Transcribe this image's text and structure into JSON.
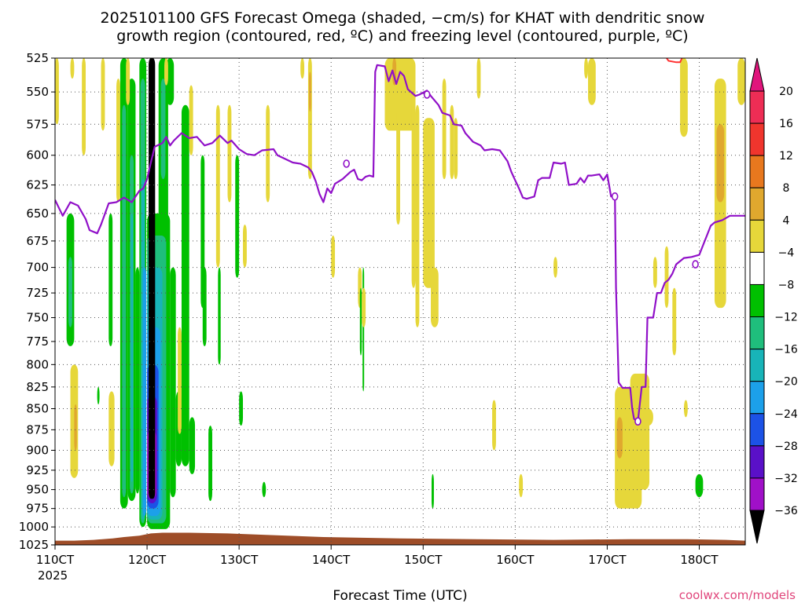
{
  "title_line1": "2025101100 GFS Forecast Omega (shaded, −cm/s) for KHAT with dendritic snow",
  "title_line2": "growth region (contoured, red, ºC) and freezing level (contoured, purple, ºC)",
  "credit": "coolwx.com/models",
  "chart_data": {
    "type": "heatmap",
    "title": "2025101100 GFS Forecast Omega (shaded, −cm/s) for KHAT with dendritic snow growth region (contoured, red, ºC) and freezing level (contoured, purple, ºC)",
    "xlabel": "Forecast Time (UTC)",
    "ylabel": "",
    "x_ticks": [
      "110CT",
      "120CT",
      "130CT",
      "140CT",
      "150CT",
      "160CT",
      "170CT",
      "180CT"
    ],
    "x_tick_hours": [
      0,
      24,
      48,
      72,
      96,
      120,
      144,
      168
    ],
    "x_sublabel": "2025",
    "xlim_hours": [
      0,
      180
    ],
    "y_ticks": [
      525,
      550,
      575,
      600,
      625,
      650,
      675,
      700,
      725,
      750,
      775,
      800,
      825,
      850,
      875,
      900,
      925,
      950,
      975,
      1000,
      1025
    ],
    "ylim_hPa": [
      525,
      1025
    ],
    "y_scale": "log-pressure",
    "grid": "dotted",
    "colorbar": {
      "labels": [
        "20",
        "16",
        "12",
        "8",
        "4",
        "−4",
        "−8",
        "−12",
        "−16",
        "−20",
        "−24",
        "−28",
        "−32",
        "−36"
      ],
      "colors": [
        "#ee2d55",
        "#f0352d",
        "#e8781e",
        "#e0a82e",
        "#e6d73a",
        "#ffffff",
        "#00c000",
        "#1fbe7c",
        "#18b4b8",
        "#1ca0ea",
        "#1c52e6",
        "#5a10c8",
        "#a010c8",
        "#a8a8a8"
      ],
      "top_arrow_color": "#e0157c",
      "bottom_arrow_color": "#000000"
    },
    "terrain_color": "#9e4d28",
    "freezing_level": {
      "color": "#9010c8",
      "labels": "0",
      "points": [
        [
          0,
          638
        ],
        [
          2,
          652
        ],
        [
          4,
          640
        ],
        [
          6,
          643
        ],
        [
          8,
          655
        ],
        [
          9,
          665
        ],
        [
          11,
          668
        ],
        [
          12,
          660
        ],
        [
          14,
          641
        ],
        [
          16,
          640
        ],
        [
          18,
          636
        ],
        [
          20,
          640
        ],
        [
          22,
          630
        ],
        [
          23,
          628
        ],
        [
          24,
          620
        ],
        [
          25,
          606
        ],
        [
          26,
          593
        ],
        [
          28,
          590
        ],
        [
          29,
          585
        ],
        [
          30,
          592
        ],
        [
          31,
          588
        ],
        [
          33,
          582
        ],
        [
          35,
          586
        ],
        [
          37,
          585
        ],
        [
          39,
          592
        ],
        [
          41,
          590
        ],
        [
          43,
          584
        ],
        [
          45,
          590
        ],
        [
          46,
          588
        ],
        [
          48,
          595
        ],
        [
          50,
          599
        ],
        [
          52,
          600
        ],
        [
          54,
          596
        ],
        [
          57,
          595
        ],
        [
          58,
          600
        ],
        [
          60,
          603
        ],
        [
          62,
          606
        ],
        [
          64,
          607
        ],
        [
          66,
          610
        ],
        [
          67,
          614
        ],
        [
          68,
          622
        ],
        [
          69,
          633
        ],
        [
          70,
          640
        ],
        [
          71,
          628
        ],
        [
          72,
          632
        ],
        [
          73,
          624
        ],
        [
          75,
          620
        ],
        [
          77,
          614
        ],
        [
          78,
          612
        ],
        [
          79,
          620
        ],
        [
          80,
          621
        ],
        [
          81,
          618
        ],
        [
          82,
          617
        ],
        [
          83,
          618
        ],
        [
          83.5,
          535
        ],
        [
          84,
          530
        ],
        [
          86,
          531
        ],
        [
          87,
          542
        ],
        [
          88,
          534
        ],
        [
          89,
          544
        ],
        [
          90,
          535
        ],
        [
          91,
          538
        ],
        [
          92,
          548
        ],
        [
          94,
          553
        ],
        [
          95,
          552
        ],
        [
          97,
          549
        ],
        [
          98,
          553
        ],
        [
          100,
          560
        ],
        [
          101,
          566
        ],
        [
          103,
          568
        ],
        [
          104,
          575
        ],
        [
          106,
          576
        ],
        [
          107,
          582
        ],
        [
          109,
          589
        ],
        [
          111,
          592
        ],
        [
          112,
          596
        ],
        [
          114,
          595
        ],
        [
          116,
          596
        ],
        [
          118,
          605
        ],
        [
          119,
          614
        ],
        [
          120,
          621
        ],
        [
          121,
          628
        ],
        [
          122,
          636
        ],
        [
          123,
          637
        ],
        [
          125,
          635
        ],
        [
          126,
          621
        ],
        [
          127,
          619
        ],
        [
          129,
          619
        ],
        [
          130,
          606
        ],
        [
          132,
          607
        ],
        [
          133,
          606
        ],
        [
          134,
          625
        ],
        [
          136,
          624
        ],
        [
          137,
          619
        ],
        [
          138,
          623
        ],
        [
          139,
          617
        ],
        [
          140,
          617
        ],
        [
          142,
          616
        ],
        [
          143,
          621
        ],
        [
          144,
          616
        ],
        [
          145,
          635
        ],
        [
          146,
          635
        ],
        [
          146.3,
          720
        ],
        [
          147,
          820
        ],
        [
          148,
          826
        ],
        [
          150,
          826
        ],
        [
          150.5,
          849
        ],
        [
          151,
          862
        ],
        [
          152,
          865
        ],
        [
          153,
          825
        ],
        [
          154,
          825
        ],
        [
          154.5,
          750
        ],
        [
          156,
          750
        ],
        [
          157,
          725
        ],
        [
          158,
          725
        ],
        [
          159,
          715
        ],
        [
          160,
          712
        ],
        [
          161,
          706
        ],
        [
          162,
          697
        ],
        [
          164,
          691
        ],
        [
          166,
          690
        ],
        [
          168,
          688
        ],
        [
          169,
          679
        ],
        [
          170,
          670
        ],
        [
          171,
          661
        ],
        [
          172,
          658
        ],
        [
          174,
          656
        ],
        [
          176,
          652
        ],
        [
          178,
          652
        ],
        [
          180,
          652
        ]
      ]
    },
    "dendritic_region": {
      "color": "#ff3030"
    }
  }
}
